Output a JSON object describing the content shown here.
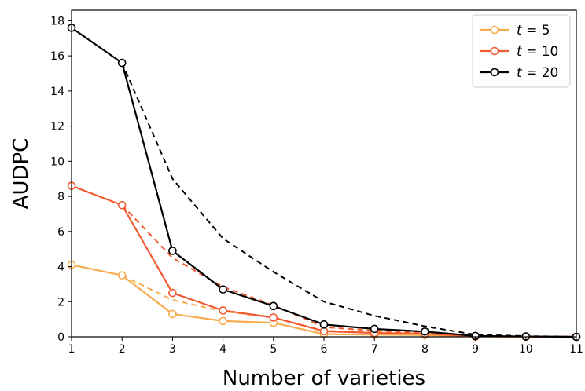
{
  "chart_data": {
    "type": "line",
    "title": "",
    "xlabel": "Number of varieties",
    "ylabel": "AUDPC",
    "xlim": [
      1,
      11
    ],
    "ylim": [
      0,
      18.6
    ],
    "xticks": [
      "1",
      "2",
      "3",
      "4",
      "5",
      "6",
      "7",
      "8",
      "9",
      "10",
      "11"
    ],
    "yticks": [
      "0",
      "2",
      "4",
      "6",
      "8",
      "10",
      "12",
      "14",
      "16",
      "18"
    ],
    "grid": false,
    "legend_position": "top-right",
    "x": [
      1,
      2,
      3,
      4,
      5,
      6,
      7,
      8,
      9,
      10,
      11
    ],
    "series": [
      {
        "name": "t = 5",
        "legend_prefix": "t",
        "legend_suffix": " = 5",
        "color": "#f7ac4f",
        "marker": "open-circle",
        "values": [
          4.1,
          3.5,
          1.3,
          0.9,
          0.8,
          0.15,
          0.12,
          0.1,
          0.02,
          0.01,
          0.0
        ],
        "dashed_values": [
          null,
          3.5,
          2.1,
          1.45,
          1.1,
          0.35,
          0.25,
          0.18,
          0.05,
          0.01,
          0.0
        ]
      },
      {
        "name": "t = 10",
        "legend_prefix": "t",
        "legend_suffix": " = 10",
        "color": "#f25a31",
        "marker": "open-circle",
        "values": [
          8.6,
          7.5,
          2.5,
          1.5,
          1.1,
          0.32,
          0.22,
          0.18,
          0.03,
          0.01,
          0.0
        ],
        "dashed_values": [
          null,
          7.5,
          4.5,
          2.85,
          1.8,
          0.55,
          0.35,
          0.25,
          0.06,
          0.02,
          0.0
        ]
      },
      {
        "name": "t = 20",
        "legend_prefix": "t",
        "legend_suffix": " = 20",
        "color": "#000000",
        "marker": "open-circle",
        "values": [
          17.6,
          15.6,
          4.9,
          2.7,
          1.75,
          0.7,
          0.45,
          0.3,
          0.05,
          0.02,
          0.0
        ],
        "dashed_values": [
          null,
          15.6,
          9.0,
          5.6,
          3.7,
          2.0,
          1.2,
          0.6,
          0.12,
          0.04,
          0.0
        ]
      }
    ]
  }
}
